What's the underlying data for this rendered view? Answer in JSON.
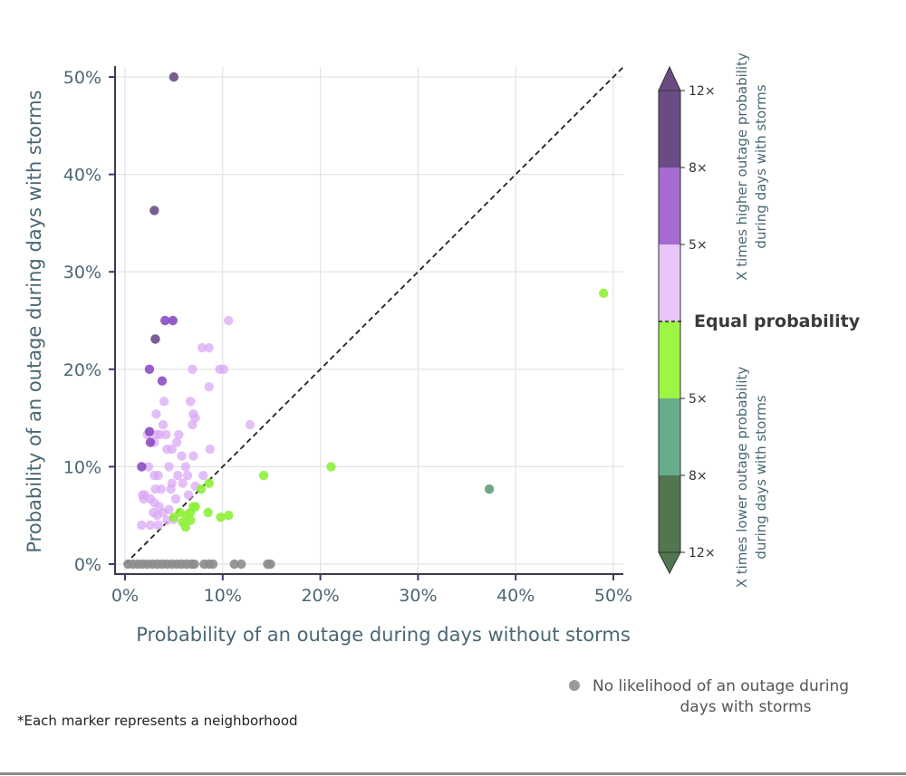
{
  "chart_data": {
    "type": "scatter",
    "title": "",
    "xlabel": "Probability of an outage during days without storms",
    "ylabel": "Probability of an outage during days with storms",
    "xlim": [
      0,
      50
    ],
    "ylim": [
      0,
      50
    ],
    "xticks": [
      0,
      10,
      20,
      30,
      40,
      50
    ],
    "yticks": [
      0,
      10,
      20,
      30,
      40,
      50
    ],
    "xtick_labels": [
      "0%",
      "10%",
      "20%",
      "30%",
      "40%",
      "50%"
    ],
    "ytick_labels": [
      "0%",
      "10%",
      "20%",
      "30%",
      "40%",
      "50%"
    ],
    "grid": true,
    "reference_line": {
      "label": "Equal probability",
      "style": "dashed",
      "from": [
        0,
        0
      ],
      "to": [
        51,
        51
      ]
    },
    "colorbar": {
      "title_upper": [
        "X times higher outage probability",
        "during days with storms"
      ],
      "title_lower": [
        "X times lower outage probability",
        "during days with storms"
      ],
      "equal_label": "Equal probability",
      "upper_ticks": [
        "12×",
        "8×",
        "5×"
      ],
      "lower_ticks": [
        "5×",
        "8×",
        "12×"
      ],
      "bands": [
        {
          "name": "higher_8_12",
          "color": "#6a4c85"
        },
        {
          "name": "higher_5_8",
          "color": "#a66bd3"
        },
        {
          "name": "higher_1_5",
          "color": "#e8c6f7"
        },
        {
          "name": "lower_1_5",
          "color": "#9ef542"
        },
        {
          "name": "lower_5_8",
          "color": "#67ad8c"
        },
        {
          "name": "lower_8_12",
          "color": "#527650"
        }
      ]
    },
    "series": [
      {
        "name": "higher_8_12",
        "color": "#6a4c85",
        "points": [
          [
            5.0,
            50.0
          ],
          [
            3.0,
            36.3
          ],
          [
            3.1,
            23.1
          ]
        ]
      },
      {
        "name": "higher_5_8",
        "color": "#8a4cc2",
        "points": [
          [
            4.1,
            25.0
          ],
          [
            4.9,
            25.0
          ],
          [
            2.5,
            20.0
          ],
          [
            3.8,
            18.8
          ],
          [
            2.5,
            13.6
          ],
          [
            2.6,
            12.5
          ],
          [
            1.7,
            10.0
          ]
        ]
      },
      {
        "name": "higher_1_5",
        "color": "#dba8f5",
        "points": [
          [
            10.6,
            25.0
          ],
          [
            7.9,
            22.2
          ],
          [
            8.6,
            22.2
          ],
          [
            6.9,
            20.0
          ],
          [
            9.7,
            20.0
          ],
          [
            10.1,
            20.0
          ],
          [
            8.6,
            18.2
          ],
          [
            4.0,
            16.7
          ],
          [
            6.7,
            16.7
          ],
          [
            3.2,
            15.4
          ],
          [
            7.0,
            15.4
          ],
          [
            7.2,
            15.0
          ],
          [
            6.9,
            14.3
          ],
          [
            3.9,
            14.3
          ],
          [
            12.8,
            14.3
          ],
          [
            2.3,
            13.3
          ],
          [
            3.2,
            13.3
          ],
          [
            3.5,
            13.3
          ],
          [
            5.5,
            13.3
          ],
          [
            4.2,
            13.3
          ],
          [
            5.3,
            12.5
          ],
          [
            3.0,
            12.5
          ],
          [
            4.3,
            11.8
          ],
          [
            4.8,
            11.8
          ],
          [
            8.7,
            11.8
          ],
          [
            5.8,
            11.1
          ],
          [
            7.0,
            11.1
          ],
          [
            2.4,
            10.0
          ],
          [
            4.5,
            10.0
          ],
          [
            6.2,
            10.0
          ],
          [
            6.4,
            9.1
          ],
          [
            3.0,
            9.1
          ],
          [
            3.4,
            9.1
          ],
          [
            5.4,
            9.1
          ],
          [
            8.0,
            9.1
          ],
          [
            4.8,
            8.3
          ],
          [
            5.9,
            8.3
          ],
          [
            7.2,
            8.0
          ],
          [
            3.1,
            7.7
          ],
          [
            3.7,
            7.7
          ],
          [
            4.7,
            7.7
          ],
          [
            1.8,
            7.1
          ],
          [
            2.0,
            7.1
          ],
          [
            6.5,
            7.1
          ],
          [
            2.6,
            6.7
          ],
          [
            5.2,
            6.7
          ],
          [
            3.0,
            6.3
          ],
          [
            1.9,
            6.7
          ],
          [
            3.5,
            5.9
          ],
          [
            4.5,
            5.6
          ],
          [
            2.9,
            5.3
          ],
          [
            3.3,
            5.0
          ],
          [
            3.9,
            5.3
          ],
          [
            4.3,
            4.5
          ],
          [
            2.6,
            4.0
          ],
          [
            3.4,
            4.0
          ],
          [
            1.7,
            4.0
          ],
          [
            5.0,
            4.6
          ]
        ]
      },
      {
        "name": "lower_1_5",
        "color": "#8ff03a",
        "points": [
          [
            49.0,
            27.8
          ],
          [
            21.1,
            10.0
          ],
          [
            14.2,
            9.1
          ],
          [
            8.6,
            8.3
          ],
          [
            7.8,
            7.7
          ],
          [
            7.0,
            5.9
          ],
          [
            6.7,
            5.3
          ],
          [
            6.3,
            5.0
          ],
          [
            8.5,
            5.3
          ],
          [
            10.6,
            5.0
          ],
          [
            9.8,
            4.8
          ],
          [
            5.0,
            4.8
          ],
          [
            5.9,
            4.3
          ],
          [
            6.2,
            3.8
          ],
          [
            5.6,
            5.3
          ],
          [
            6.7,
            4.5
          ],
          [
            7.2,
            5.9
          ]
        ]
      },
      {
        "name": "lower_5_8",
        "color": "#5e9e7a",
        "points": [
          [
            37.3,
            7.7
          ]
        ]
      },
      {
        "name": "no_likelihood",
        "color": "#8c8c8c",
        "points": [
          [
            0.3,
            0
          ],
          [
            0.8,
            0
          ],
          [
            1.3,
            0
          ],
          [
            1.8,
            0
          ],
          [
            2.3,
            0
          ],
          [
            2.8,
            0
          ],
          [
            3.3,
            0
          ],
          [
            3.8,
            0
          ],
          [
            4.3,
            0
          ],
          [
            4.8,
            0
          ],
          [
            5.3,
            0
          ],
          [
            5.8,
            0
          ],
          [
            6.3,
            0
          ],
          [
            6.8,
            0
          ],
          [
            7.1,
            0
          ],
          [
            8.1,
            0
          ],
          [
            8.6,
            0
          ],
          [
            9.0,
            0
          ],
          [
            11.2,
            0
          ],
          [
            11.9,
            0
          ],
          [
            14.6,
            0
          ],
          [
            14.9,
            0
          ]
        ]
      }
    ],
    "legend": {
      "placement": "bottom-right",
      "entries": [
        {
          "label": "No likelihood of an outage during days with storms",
          "color": "#9a9a9a"
        }
      ]
    }
  },
  "legend_lines": [
    "No likelihood of an outage during",
    "days with storms"
  ],
  "footnote": "*Each marker represents a neighborhood"
}
